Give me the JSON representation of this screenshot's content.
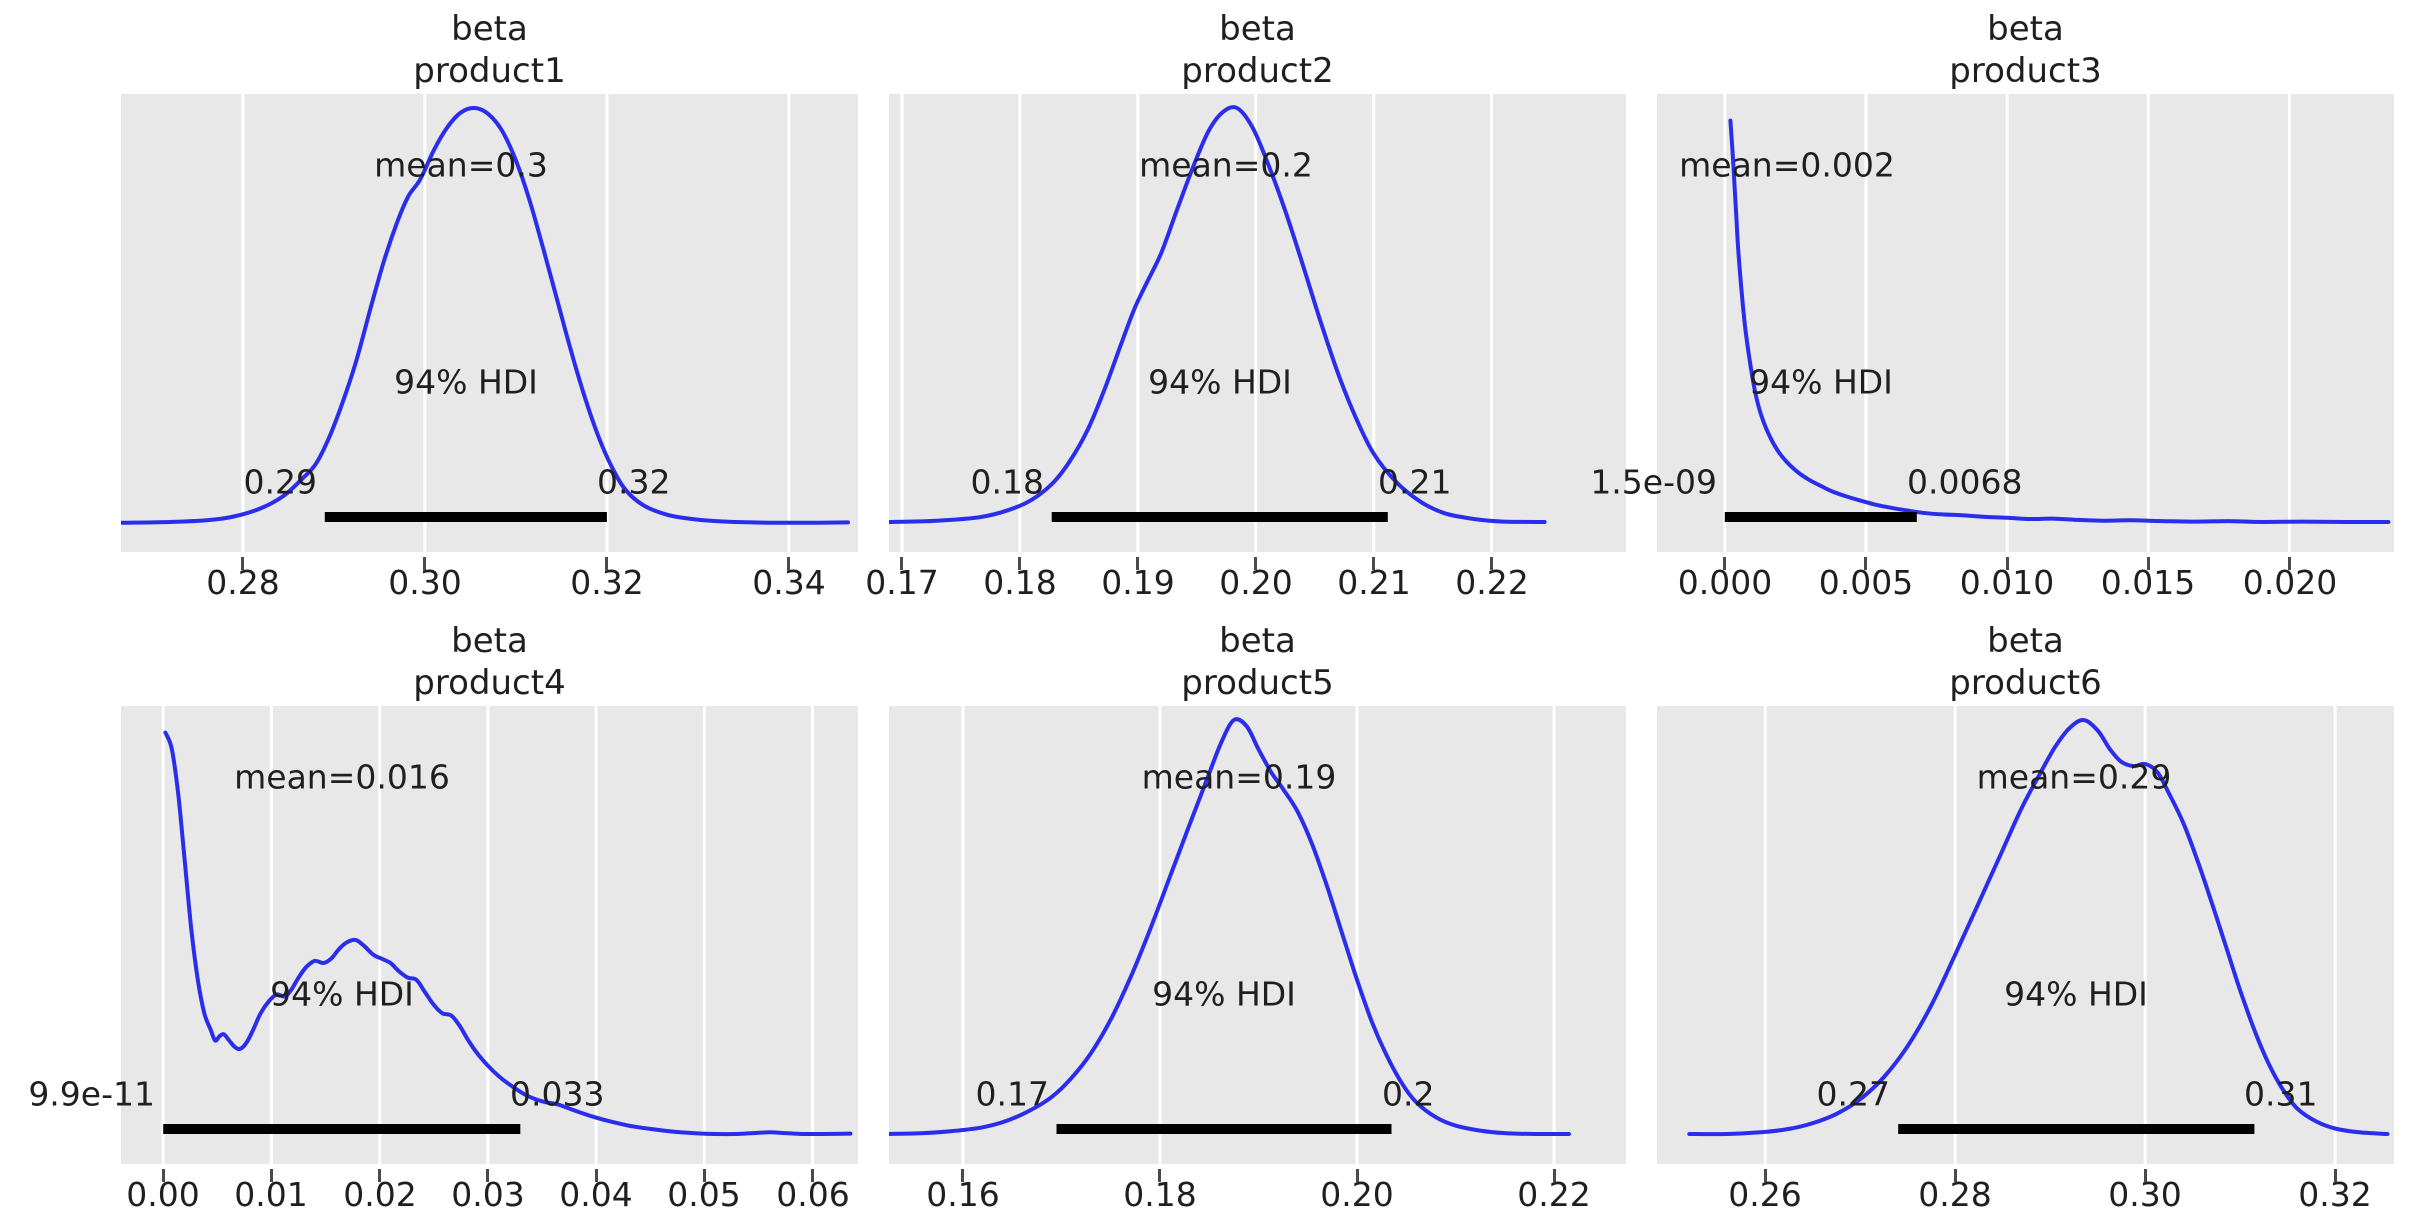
{
  "figure": {
    "background": "#ffffff"
  },
  "style": {
    "panel_bg": "#e8e8e8",
    "grid_color": "#ffffff",
    "curve_color": "#2a2eec",
    "hdi_bar_color": "#000000",
    "text_color": "#1f1f1f",
    "tick_color": "#4a4a4a"
  },
  "chart_data": [
    {
      "type": "line",
      "title_line1": "beta",
      "title_line2": "product1",
      "mean_label": "mean=0.3",
      "mean_x": 0.304,
      "hdi_text": "94% HDI",
      "hdi_lower_label": "0.29",
      "hdi_upper_label": "0.32",
      "hdi_interval": [
        0.289,
        0.32
      ],
      "xlim": [
        0.2666,
        0.3476
      ],
      "xtick_values": [
        0.28,
        0.3,
        0.32,
        0.34
      ],
      "xtick_labels": [
        "0.28",
        "0.30",
        "0.32",
        "0.34"
      ],
      "curve_x": [
        0.2666,
        0.272,
        0.276,
        0.279,
        0.282,
        0.2845,
        0.2865,
        0.288,
        0.2895,
        0.291,
        0.2925,
        0.294,
        0.2955,
        0.297,
        0.2982,
        0.2995,
        0.301,
        0.3025,
        0.304,
        0.3055,
        0.307,
        0.3085,
        0.31,
        0.3115,
        0.313,
        0.3145,
        0.316,
        0.3175,
        0.319,
        0.3205,
        0.322,
        0.324,
        0.3265,
        0.329,
        0.332,
        0.336,
        0.341,
        0.3465
      ],
      "curve_y": [
        0.01,
        0.012,
        0.016,
        0.025,
        0.045,
        0.075,
        0.115,
        0.15,
        0.215,
        0.3,
        0.4,
        0.52,
        0.635,
        0.73,
        0.79,
        0.83,
        0.9,
        0.955,
        0.99,
        1.0,
        0.985,
        0.945,
        0.875,
        0.78,
        0.665,
        0.545,
        0.425,
        0.315,
        0.22,
        0.145,
        0.09,
        0.052,
        0.03,
        0.02,
        0.014,
        0.011,
        0.01,
        0.011
      ]
    },
    {
      "type": "line",
      "title_line1": "beta",
      "title_line2": "product2",
      "mean_label": "mean=0.2",
      "mean_x": 0.1975,
      "hdi_text": "94% HDI",
      "hdi_lower_label": "0.18",
      "hdi_upper_label": "0.21",
      "hdi_interval": [
        0.1827,
        0.2112
      ],
      "xlim": [
        0.1689,
        0.2314
      ],
      "xtick_values": [
        0.17,
        0.18,
        0.19,
        0.2,
        0.21,
        0.22
      ],
      "xtick_labels": [
        "0.17",
        "0.18",
        "0.19",
        "0.20",
        "0.21",
        "0.22"
      ],
      "curve_x": [
        0.1689,
        0.173,
        0.1765,
        0.179,
        0.181,
        0.1828,
        0.1843,
        0.1858,
        0.1872,
        0.1885,
        0.1897,
        0.1908,
        0.192,
        0.1933,
        0.1947,
        0.196,
        0.1972,
        0.1984,
        0.1997,
        0.201,
        0.2025,
        0.204,
        0.2055,
        0.207,
        0.2085,
        0.21,
        0.212,
        0.214,
        0.216,
        0.2185,
        0.221,
        0.2245
      ],
      "curve_y": [
        0.012,
        0.015,
        0.023,
        0.04,
        0.065,
        0.105,
        0.16,
        0.235,
        0.33,
        0.43,
        0.52,
        0.585,
        0.655,
        0.755,
        0.86,
        0.945,
        0.99,
        1.0,
        0.955,
        0.87,
        0.755,
        0.625,
        0.49,
        0.365,
        0.26,
        0.175,
        0.105,
        0.06,
        0.033,
        0.019,
        0.013,
        0.012
      ]
    },
    {
      "type": "line",
      "title_line1": "beta",
      "title_line2": "product3",
      "mean_label": "mean=0.002",
      "mean_x": 0.0022,
      "hdi_text": "94% HDI",
      "hdi_lower_label": "1.5e-09",
      "hdi_upper_label": "0.0068",
      "hdi_interval": [
        0.0,
        0.0068
      ],
      "xlim": [
        -0.0024,
        0.0237
      ],
      "xtick_values": [
        0.0,
        0.005,
        0.01,
        0.015,
        0.02
      ],
      "xtick_labels": [
        "0.000",
        "0.005",
        "0.010",
        "0.015",
        "0.020"
      ],
      "curve_x": [
        0.0002,
        0.0003,
        0.0004,
        0.0005,
        0.0007,
        0.0009,
        0.0011,
        0.0013,
        0.0016,
        0.0019,
        0.0022,
        0.0026,
        0.003,
        0.0034,
        0.0038,
        0.0043,
        0.0048,
        0.0053,
        0.0058,
        0.0064,
        0.007,
        0.0077,
        0.0084,
        0.0092,
        0.01,
        0.0108,
        0.0116,
        0.0125,
        0.0134,
        0.0144,
        0.0155,
        0.0166,
        0.0178,
        0.019,
        0.0205,
        0.022,
        0.0235
      ],
      "curve_y": [
        0.97,
        0.87,
        0.75,
        0.64,
        0.49,
        0.39,
        0.315,
        0.265,
        0.215,
        0.18,
        0.155,
        0.13,
        0.112,
        0.098,
        0.085,
        0.073,
        0.063,
        0.054,
        0.047,
        0.04,
        0.034,
        0.03,
        0.028,
        0.024,
        0.022,
        0.019,
        0.02,
        0.017,
        0.015,
        0.016,
        0.014,
        0.013,
        0.014,
        0.012,
        0.013,
        0.012,
        0.012
      ]
    },
    {
      "type": "line",
      "title_line1": "beta",
      "title_line2": "product4",
      "mean_label": "mean=0.016",
      "mean_x": 0.0165,
      "hdi_text": "94% HDI",
      "hdi_lower_label": "9.9e-11",
      "hdi_upper_label": "0.033",
      "hdi_interval": [
        0.0,
        0.033
      ],
      "xlim": [
        -0.0039,
        0.0642
      ],
      "xtick_values": [
        0.0,
        0.01,
        0.02,
        0.03,
        0.04,
        0.05,
        0.06
      ],
      "xtick_labels": [
        "0.00",
        "0.01",
        "0.02",
        "0.03",
        "0.04",
        "0.05",
        "0.06"
      ],
      "curve_x": [
        0.0002,
        0.0008,
        0.0014,
        0.002,
        0.0026,
        0.0032,
        0.0038,
        0.0044,
        0.0048,
        0.0052,
        0.0056,
        0.0061,
        0.0066,
        0.0071,
        0.0077,
        0.0083,
        0.009,
        0.0098,
        0.0105,
        0.0112,
        0.0118,
        0.0125,
        0.0132,
        0.014,
        0.0148,
        0.0155,
        0.0163,
        0.017,
        0.0178,
        0.0186,
        0.0194,
        0.0202,
        0.021,
        0.0218,
        0.0226,
        0.0234,
        0.0242,
        0.025,
        0.0258,
        0.0266,
        0.0274,
        0.0282,
        0.029,
        0.03,
        0.031,
        0.032,
        0.0335,
        0.035,
        0.0365,
        0.038,
        0.0395,
        0.041,
        0.043,
        0.045,
        0.047,
        0.049,
        0.051,
        0.053,
        0.0545,
        0.056,
        0.0575,
        0.059,
        0.061,
        0.0635
      ],
      "curve_y": [
        0.97,
        0.93,
        0.82,
        0.66,
        0.5,
        0.38,
        0.3,
        0.26,
        0.235,
        0.245,
        0.25,
        0.235,
        0.22,
        0.215,
        0.23,
        0.26,
        0.3,
        0.33,
        0.345,
        0.34,
        0.355,
        0.385,
        0.41,
        0.425,
        0.42,
        0.43,
        0.455,
        0.47,
        0.475,
        0.46,
        0.44,
        0.43,
        0.42,
        0.4,
        0.385,
        0.38,
        0.35,
        0.32,
        0.3,
        0.295,
        0.27,
        0.235,
        0.205,
        0.175,
        0.15,
        0.13,
        0.105,
        0.09,
        0.082,
        0.068,
        0.055,
        0.044,
        0.032,
        0.024,
        0.018,
        0.014,
        0.012,
        0.012,
        0.014,
        0.016,
        0.014,
        0.012,
        0.012,
        0.013
      ]
    },
    {
      "type": "line",
      "title_line1": "beta",
      "title_line2": "product5",
      "mean_label": "mean=0.19",
      "mean_x": 0.188,
      "hdi_text": "94% HDI",
      "hdi_lower_label": "0.17",
      "hdi_upper_label": "0.2",
      "hdi_interval": [
        0.1695,
        0.2035
      ],
      "xlim": [
        0.1525,
        0.2273
      ],
      "xtick_values": [
        0.16,
        0.18,
        0.2,
        0.22
      ],
      "xtick_labels": [
        "0.16",
        "0.18",
        "0.20",
        "0.22"
      ],
      "curve_x": [
        0.1525,
        0.156,
        0.159,
        0.162,
        0.1645,
        0.1668,
        0.169,
        0.171,
        0.173,
        0.175,
        0.177,
        0.179,
        0.181,
        0.183,
        0.1848,
        0.1862,
        0.1875,
        0.1888,
        0.19,
        0.1913,
        0.1925,
        0.194,
        0.1955,
        0.197,
        0.1985,
        0.2,
        0.2015,
        0.203,
        0.2045,
        0.206,
        0.208,
        0.21,
        0.2125,
        0.215,
        0.218,
        0.2215
      ],
      "curve_y": [
        0.012,
        0.014,
        0.019,
        0.028,
        0.044,
        0.068,
        0.1,
        0.145,
        0.205,
        0.285,
        0.385,
        0.5,
        0.625,
        0.75,
        0.86,
        0.945,
        1.0,
        0.985,
        0.93,
        0.875,
        0.835,
        0.78,
        0.7,
        0.6,
        0.49,
        0.38,
        0.28,
        0.2,
        0.135,
        0.088,
        0.052,
        0.032,
        0.02,
        0.014,
        0.012,
        0.012
      ]
    },
    {
      "type": "line",
      "title_line1": "beta",
      "title_line2": "product6",
      "mean_label": "mean=0.29",
      "mean_x": 0.2925,
      "hdi_text": "94% HDI",
      "hdi_lower_label": "0.27",
      "hdi_upper_label": "0.31",
      "hdi_interval": [
        0.274,
        0.3115
      ],
      "xlim": [
        0.2486,
        0.3262
      ],
      "xtick_values": [
        0.26,
        0.28,
        0.3,
        0.32
      ],
      "xtick_labels": [
        "0.26",
        "0.28",
        "0.30",
        "0.32"
      ],
      "curve_x": [
        0.252,
        0.256,
        0.2595,
        0.2625,
        0.265,
        0.2675,
        0.27,
        0.2725,
        0.275,
        0.2775,
        0.28,
        0.2825,
        0.285,
        0.287,
        0.289,
        0.2905,
        0.292,
        0.2935,
        0.295,
        0.2963,
        0.2975,
        0.2988,
        0.3,
        0.3013,
        0.3025,
        0.304,
        0.3055,
        0.307,
        0.3085,
        0.31,
        0.3115,
        0.313,
        0.3145,
        0.316,
        0.318,
        0.32,
        0.3225,
        0.3255
      ],
      "curve_y": [
        0.012,
        0.012,
        0.016,
        0.024,
        0.038,
        0.06,
        0.095,
        0.148,
        0.222,
        0.32,
        0.44,
        0.565,
        0.69,
        0.79,
        0.875,
        0.935,
        0.98,
        1.0,
        0.975,
        0.93,
        0.9,
        0.89,
        0.895,
        0.875,
        0.825,
        0.755,
        0.665,
        0.565,
        0.46,
        0.355,
        0.26,
        0.18,
        0.118,
        0.073,
        0.042,
        0.025,
        0.016,
        0.012
      ]
    }
  ]
}
